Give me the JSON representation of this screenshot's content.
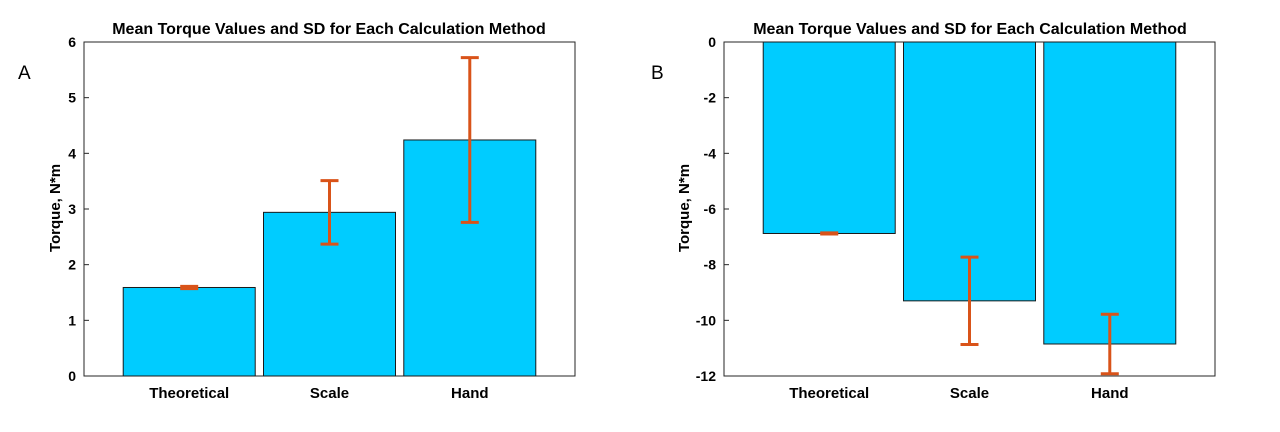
{
  "chart_data": [
    {
      "panel_label": "A",
      "type": "bar",
      "title": "Mean Torque Values and SD for Each Calculation Method",
      "xlabel": "",
      "ylabel": "Torque, N*m",
      "categories": [
        "Theoretical",
        "Scale",
        "Hand"
      ],
      "values": [
        1.59,
        2.94,
        4.24
      ],
      "sd": [
        0.02,
        0.57,
        1.48
      ],
      "ylim": [
        0,
        6
      ],
      "yticks": [
        "0",
        "1",
        "2",
        "3",
        "4",
        "5",
        "6"
      ],
      "grid": false,
      "bar_color": "#00CCFF",
      "error_color": "#D95319"
    },
    {
      "panel_label": "B",
      "type": "bar",
      "title": "Mean Torque Values and SD for Each Calculation Method",
      "xlabel": "",
      "ylabel": "Torque, N*m",
      "categories": [
        "Theoretical",
        "Scale",
        "Hand"
      ],
      "values": [
        -6.88,
        -9.3,
        -10.85
      ],
      "sd": [
        0.02,
        1.57,
        1.07
      ],
      "ylim": [
        -12,
        0
      ],
      "yticks": [
        "0",
        "-2",
        "-4",
        "-6",
        "-8",
        "-10",
        "-12"
      ],
      "grid": false,
      "bar_color": "#00CCFF",
      "error_color": "#D95319"
    }
  ]
}
